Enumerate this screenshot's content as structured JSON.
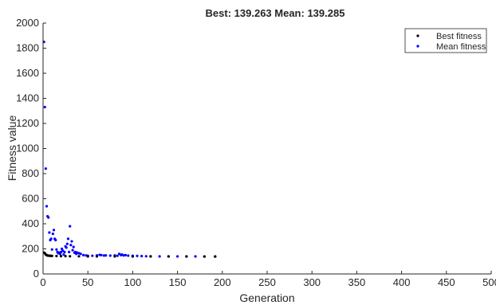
{
  "chart_data": {
    "type": "scatter",
    "title": "Best: 139.263 Mean: 139.285",
    "xlabel": "Generation",
    "ylabel": "Fitness value",
    "xlim": [
      0,
      500
    ],
    "ylim": [
      0,
      2000
    ],
    "xticks": [
      "0",
      "50",
      "100",
      "150",
      "200",
      "250",
      "300",
      "350",
      "400",
      "450",
      "500"
    ],
    "yticks": [
      "0",
      "200",
      "400",
      "600",
      "800",
      "1000",
      "1200",
      "1400",
      "1600",
      "1800",
      "2000"
    ],
    "grid": false,
    "legend_position": "top-right",
    "series": [
      {
        "name": "Best fitness",
        "color": "#000000",
        "x": [
          1,
          2,
          3,
          4,
          5,
          6,
          7,
          8,
          9,
          10,
          15,
          20,
          25,
          30,
          40,
          50,
          60,
          80,
          100,
          120,
          140,
          160,
          180,
          192
        ],
        "y": [
          170,
          165,
          155,
          150,
          147,
          146,
          145,
          145,
          144,
          144,
          143,
          142,
          142,
          141,
          141,
          140,
          140,
          140,
          139.5,
          139.4,
          139.3,
          139.3,
          139.27,
          139.263
        ]
      },
      {
        "name": "Mean fitness",
        "color": "#0000ff",
        "x": [
          1,
          2,
          3,
          4,
          5,
          6,
          7,
          8,
          9,
          10,
          11,
          12,
          13,
          14,
          15,
          16,
          17,
          18,
          19,
          20,
          21,
          22,
          23,
          24,
          25,
          26,
          27,
          28,
          29,
          30,
          31,
          32,
          33,
          34,
          35,
          36,
          37,
          38,
          40,
          42,
          45,
          48,
          50,
          55,
          60,
          63,
          65,
          68,
          70,
          75,
          80,
          83,
          85,
          87,
          88,
          90,
          92,
          95,
          100,
          105,
          110,
          115,
          120,
          130,
          140,
          150,
          160,
          170,
          180,
          192
        ],
        "y": [
          1850,
          1330,
          840,
          540,
          460,
          450,
          330,
          270,
          280,
          195,
          320,
          350,
          280,
          270,
          195,
          175,
          165,
          170,
          160,
          175,
          200,
          185,
          155,
          175,
          220,
          210,
          240,
          280,
          175,
          380,
          230,
          260,
          190,
          215,
          170,
          175,
          160,
          170,
          165,
          160,
          150,
          148,
          145,
          145,
          148,
          152,
          150,
          147,
          148,
          146,
          148,
          145,
          160,
          150,
          155,
          148,
          150,
          146,
          145,
          144,
          142,
          141,
          141,
          140,
          140,
          140,
          139.8,
          139.5,
          139.4,
          139.285
        ]
      }
    ]
  }
}
